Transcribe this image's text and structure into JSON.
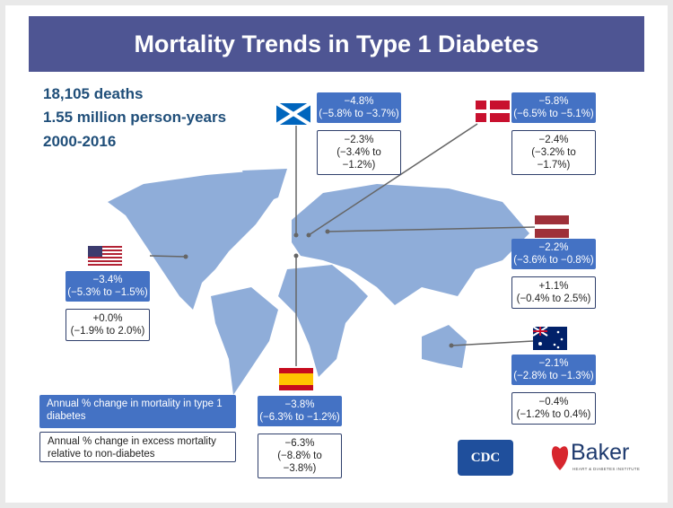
{
  "title": "Mortality Trends in Type 1 Diabetes",
  "stats": [
    "18,105 deaths",
    "1.55 million person-years",
    "2000-2016"
  ],
  "countries": [
    {
      "value": "−4.8%",
      "ci": "(−5.8% to −3.7%)",
      "excess_value": "−2.3%",
      "excess_ci": "(−3.4% to −1.2%)"
    },
    {
      "value": "−5.8%",
      "ci": "(−6.5% to −5.1%)",
      "excess_value": "−2.4%",
      "excess_ci": "(−3.2% to −1.7%)"
    },
    {
      "value": "−2.2%",
      "ci": "(−3.6% to −0.8%)",
      "excess_value": "+1.1%",
      "excess_ci": "(−0.4% to 2.5%)"
    },
    {
      "value": "−3.4%",
      "ci": "(−5.3% to −1.5%)",
      "excess_value": "+0.0%",
      "excess_ci": "(−1.9% to 2.0%)"
    },
    {
      "value": "−3.8%",
      "ci": "(−6.3% to −1.2%)",
      "excess_value": "−6.3%",
      "excess_ci": "(−8.8% to −3.8%)"
    },
    {
      "value": "−2.1%",
      "ci": "(−2.8% to −1.3%)",
      "excess_value": "−0.4%",
      "excess_ci": "(−1.2% to 0.4%)"
    }
  ],
  "legend": [
    "Annual % change in mortality in type 1 diabetes",
    "Annual % change in excess mortality relative to non-diabetes"
  ],
  "logos": [
    "CDC",
    "Baker",
    "HEART & DIABETES INSTITUTE"
  ]
}
